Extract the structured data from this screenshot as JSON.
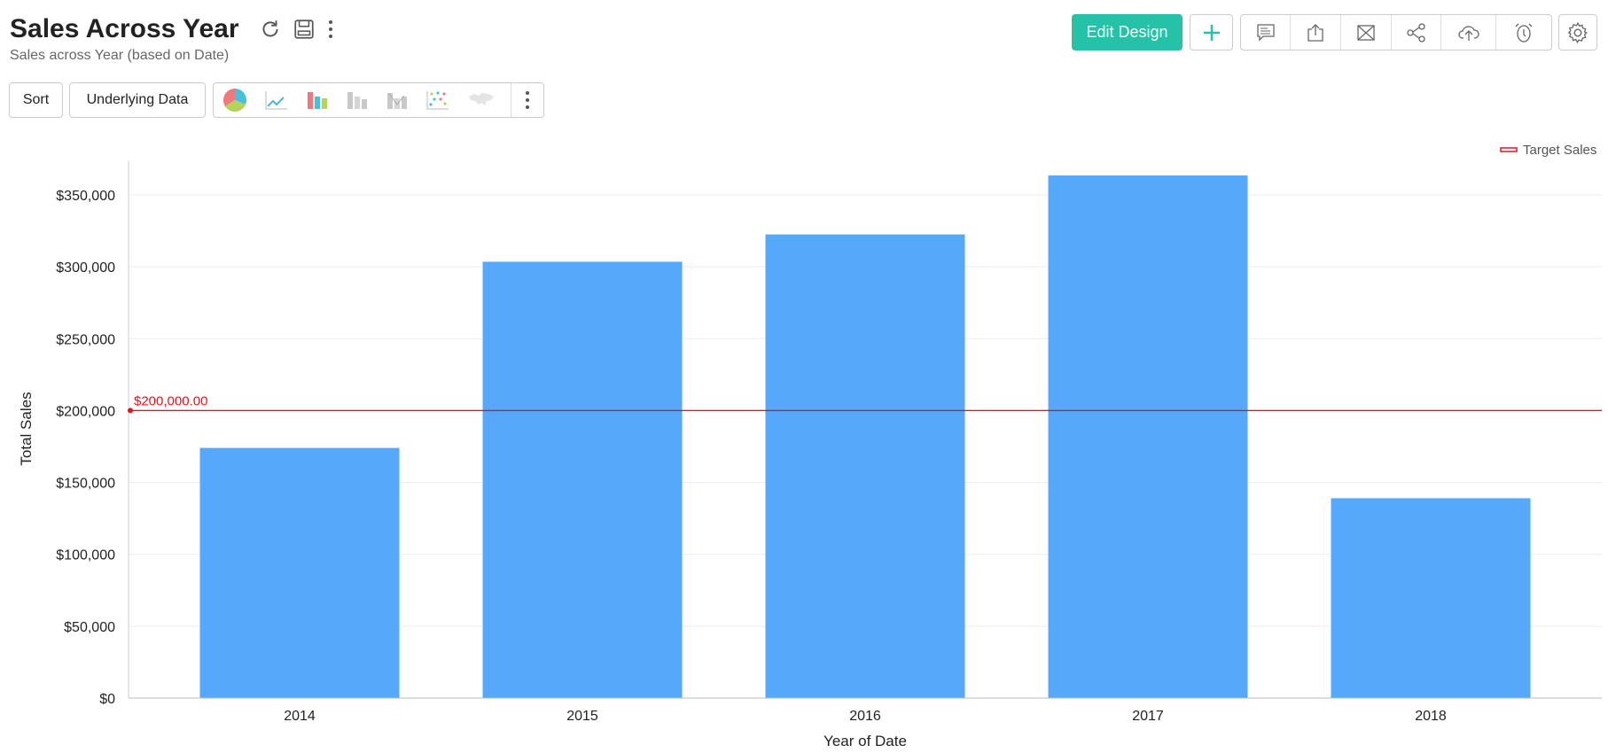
{
  "header": {
    "title": "Sales Across Year",
    "subtitle": "Sales across Year (based on Date)"
  },
  "toolbar": {
    "sort_label": "Sort",
    "underlying_label": "Underlying Data",
    "edit_design_label": "Edit Design",
    "chart_type_icons": [
      "pie-chart-icon",
      "line-chart-icon",
      "bar-chart-icon",
      "stacked-bar-icon",
      "combo-bar-icon",
      "scatter-icon",
      "map-icon"
    ],
    "action_icons": [
      "comment-icon",
      "export-icon",
      "email-icon",
      "share-icon",
      "publish-icon",
      "schedule-icon"
    ]
  },
  "colors": {
    "accent": "#26c2a8",
    "bar": "#56a8fb",
    "target": "#e0151f"
  },
  "chart_data": {
    "type": "bar",
    "categories": [
      "2014",
      "2015",
      "2016",
      "2017",
      "2018"
    ],
    "values": [
      174000,
      303500,
      322500,
      363500,
      139000
    ],
    "xlabel": "Year of Date",
    "ylabel": "Total Sales",
    "ylim": [
      0,
      375000
    ],
    "yticks": [
      0,
      50000,
      100000,
      150000,
      200000,
      250000,
      300000,
      350000
    ],
    "ytick_labels": [
      "$0",
      "$50,000",
      "$100,000",
      "$150,000",
      "$200,000",
      "$250,000",
      "$300,000",
      "$350,000"
    ],
    "grid": true,
    "reference_line": {
      "value": 200000,
      "label": "$200,000.00",
      "name": "Target Sales"
    },
    "legend": {
      "position": "top-right",
      "entries": [
        "Target Sales"
      ]
    }
  }
}
